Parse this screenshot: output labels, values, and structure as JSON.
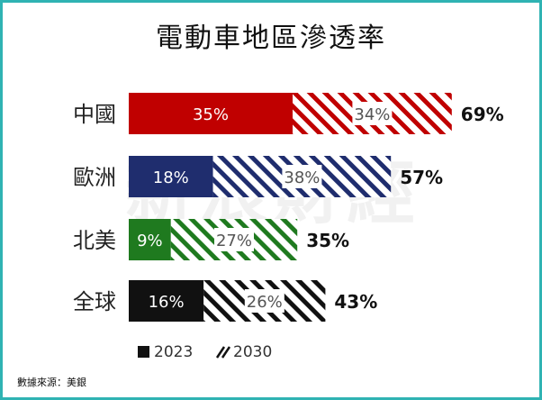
{
  "chart_data": {
    "type": "bar",
    "orientation": "horizontal",
    "stacked": true,
    "title": "電動車地區滲透率",
    "categories": [
      "中國",
      "歐洲",
      "北美",
      "全球"
    ],
    "series": [
      {
        "name": "2023",
        "values": [
          35,
          18,
          9,
          16
        ],
        "labels": [
          "35%",
          "18%",
          "9%",
          "16%"
        ],
        "pattern": "solid"
      },
      {
        "name": "2030",
        "values": [
          34,
          38,
          27,
          26
        ],
        "labels": [
          "34%",
          "38%",
          "27%",
          "26%"
        ],
        "pattern": "hatched"
      }
    ],
    "totals": [
      "69%",
      "57%",
      "35%",
      "43%"
    ],
    "colors": [
      "#c00000",
      "#1f2d6e",
      "#1f7a1f",
      "#111111"
    ],
    "legend": {
      "position": "bottom-left",
      "items": [
        "2023",
        "2030"
      ]
    },
    "grid": false,
    "xlim": [
      0,
      69
    ]
  },
  "watermark": "新浪財經",
  "source": "數據來源：美銀"
}
